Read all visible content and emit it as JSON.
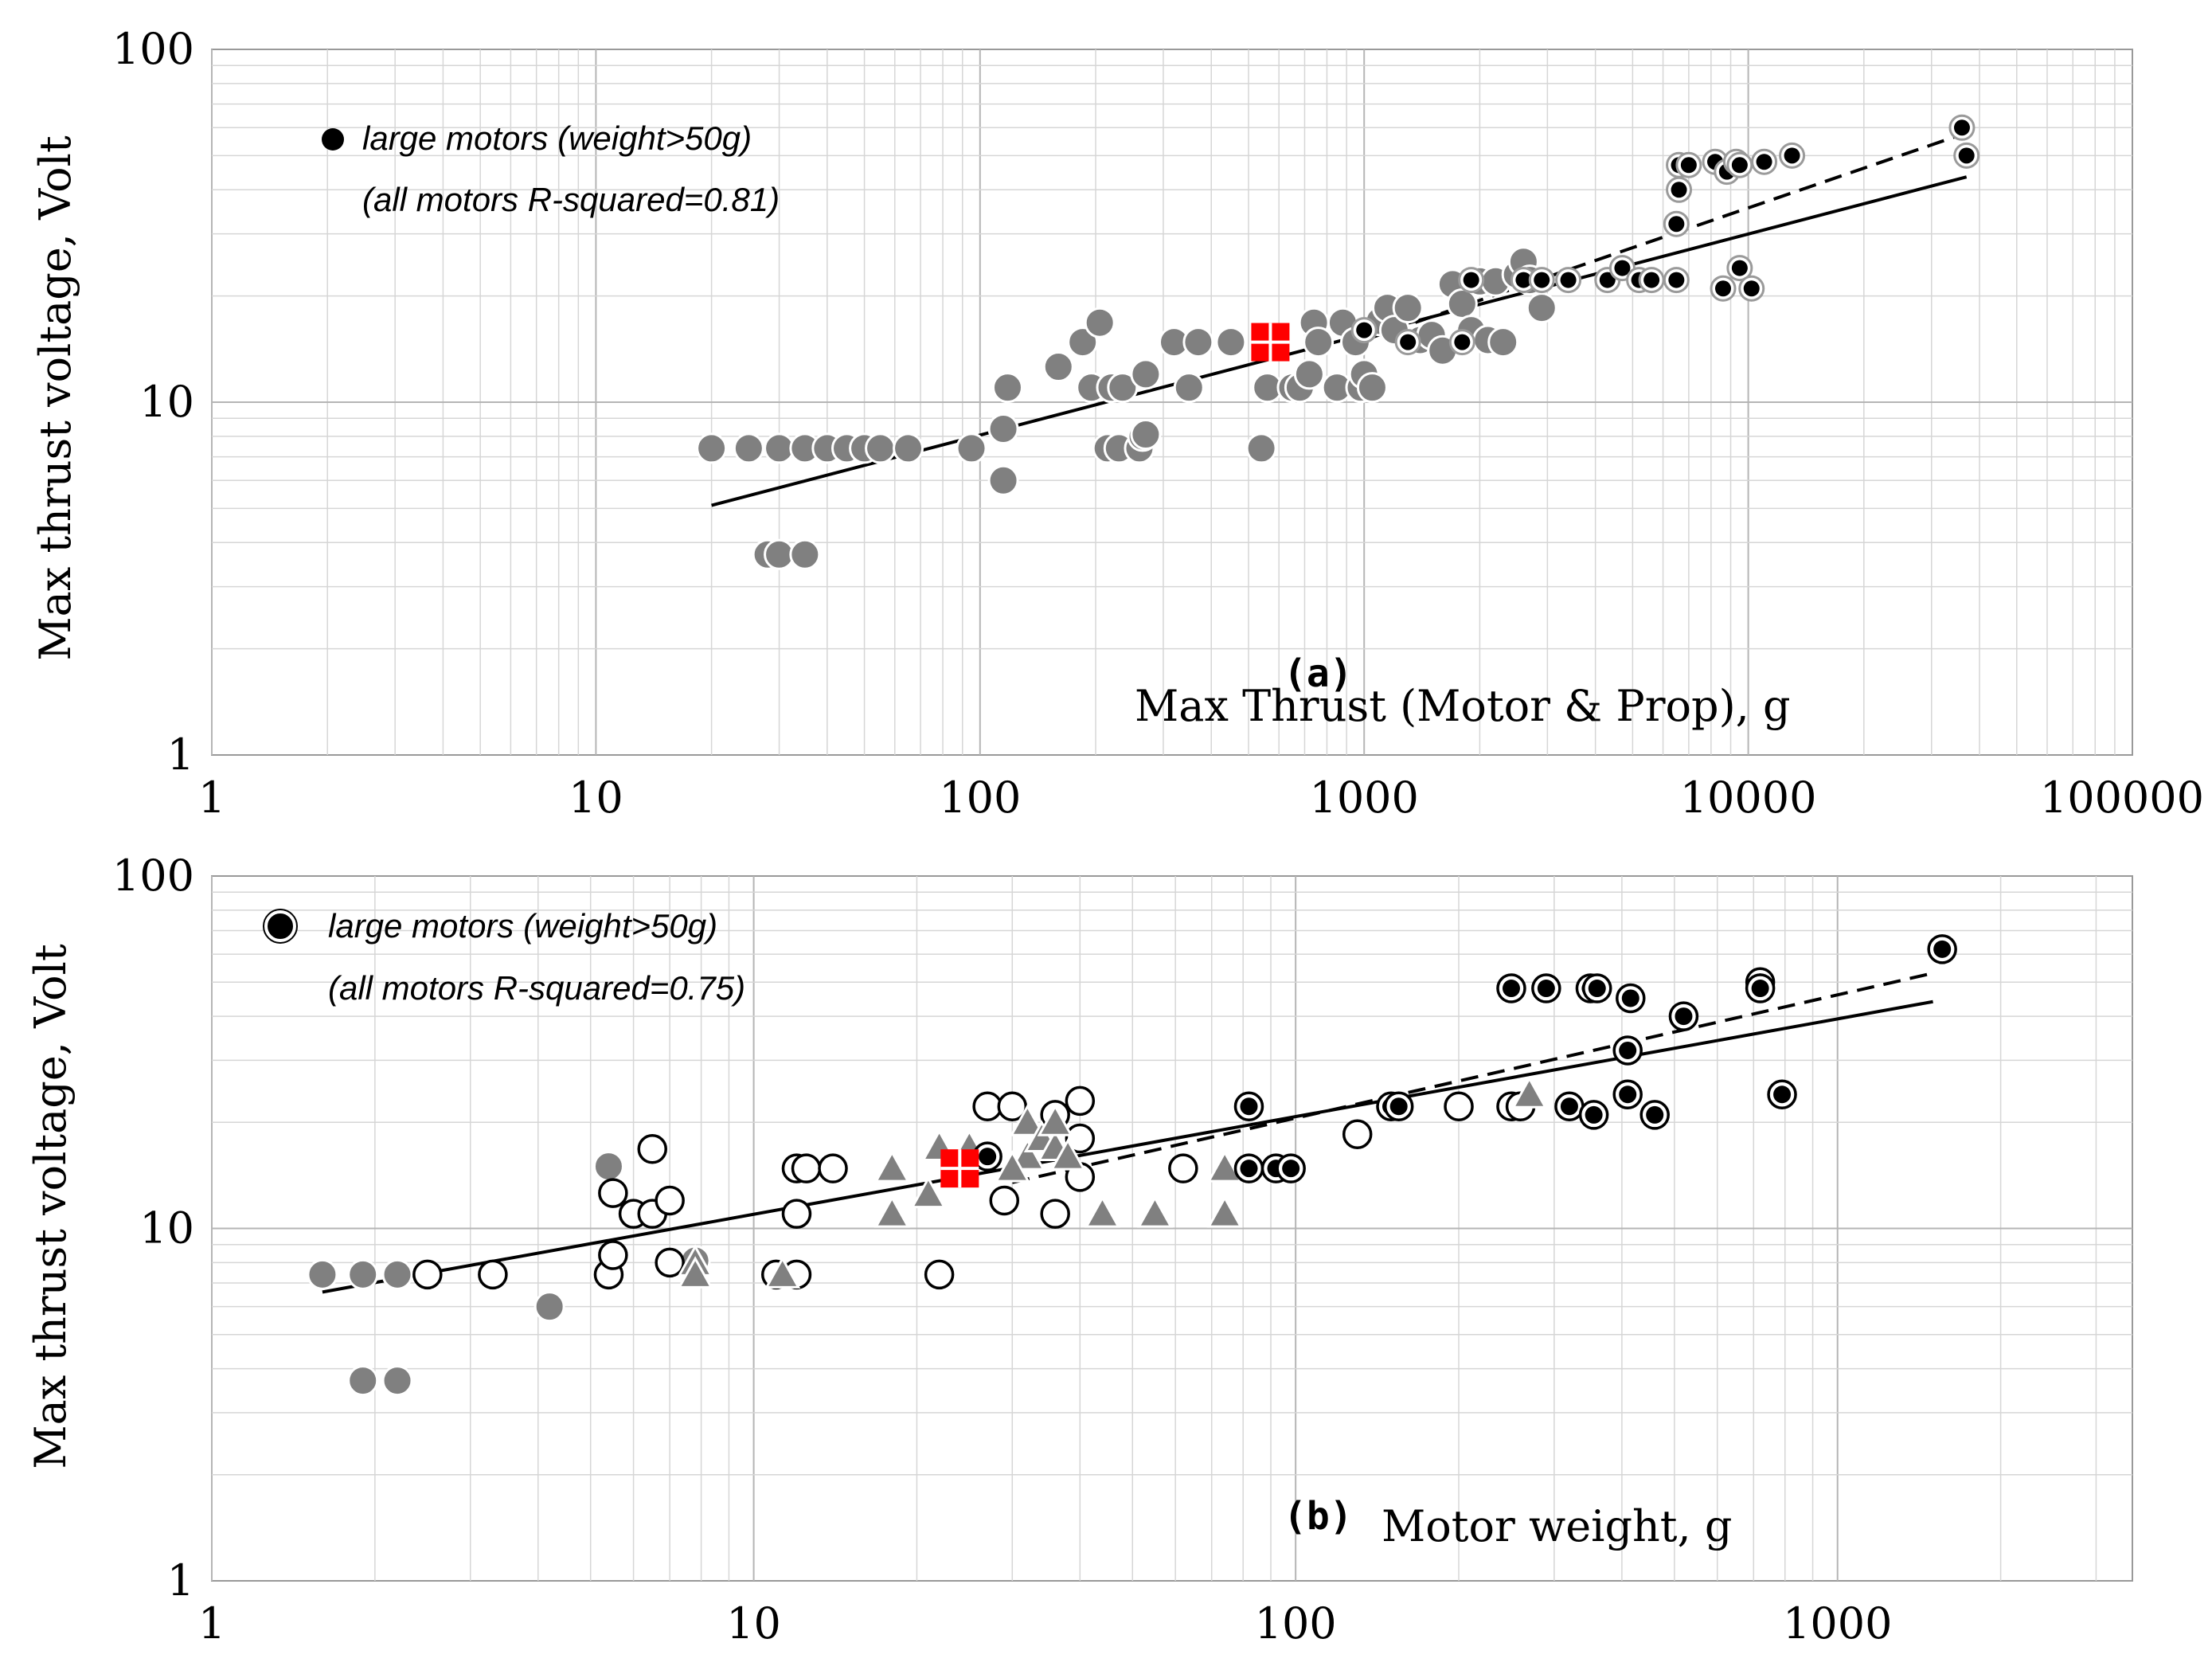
{
  "chart_data": [
    {
      "id": "a",
      "type": "scatter",
      "xscale": "log",
      "yscale": "log",
      "xlim": [
        1,
        100000
      ],
      "ylim": [
        1,
        100
      ],
      "xticks": [
        "1",
        "10",
        "100",
        "1000",
        "10000",
        "100000"
      ],
      "yticks": [
        "1",
        "10",
        "100"
      ],
      "xlabel": "Max Thrust (Motor & Prop), g",
      "ylabel": "Max thrust voltage,  Volt",
      "panel_label": "(a)",
      "legend": {
        "entry": "large motors (weight>50g)",
        "note": "(all motors R-squared=0.81)",
        "position": "top-left"
      },
      "series": [
        {
          "name": "all motors",
          "marker": "gray-circle",
          "points": [
            [
              20,
              7.4
            ],
            [
              25,
              7.4
            ],
            [
              30,
              7.4
            ],
            [
              35,
              7.4
            ],
            [
              40,
              7.4
            ],
            [
              45,
              7.4
            ],
            [
              50,
              7.4
            ],
            [
              55,
              7.4
            ],
            [
              65,
              7.4
            ],
            [
              28,
              3.7
            ],
            [
              30,
              3.7
            ],
            [
              35,
              3.7
            ],
            [
              95,
              7.4
            ],
            [
              115,
              6
            ],
            [
              115,
              8.4
            ],
            [
              118,
              11
            ],
            [
              160,
              12.6
            ],
            [
              185,
              14.8
            ],
            [
              195,
              11
            ],
            [
              205,
              16.8
            ],
            [
              215,
              7.4
            ],
            [
              220,
              11
            ],
            [
              230,
              7.4
            ],
            [
              235,
              11
            ],
            [
              260,
              7.4
            ],
            [
              265,
              8
            ],
            [
              270,
              12
            ],
            [
              270,
              8.1
            ],
            [
              320,
              14.8
            ],
            [
              350,
              11
            ],
            [
              370,
              14.8
            ],
            [
              450,
              14.8
            ],
            [
              540,
              7.4
            ],
            [
              560,
              11
            ],
            [
              650,
              11
            ],
            [
              680,
              11
            ],
            [
              720,
              12
            ],
            [
              740,
              16.8
            ],
            [
              760,
              14.8
            ],
            [
              850,
              11
            ],
            [
              880,
              16.8
            ],
            [
              950,
              14.8
            ],
            [
              980,
              11
            ],
            [
              1000,
              12
            ],
            [
              1050,
              11
            ],
            [
              1100,
              17
            ],
            [
              1150,
              18.5
            ],
            [
              1200,
              16
            ],
            [
              1300,
              18.5
            ],
            [
              1400,
              15
            ],
            [
              1500,
              15.5
            ],
            [
              1600,
              14
            ],
            [
              1700,
              21.6
            ],
            [
              1800,
              19
            ],
            [
              1900,
              16
            ],
            [
              2000,
              22
            ],
            [
              2100,
              15
            ],
            [
              2200,
              22
            ],
            [
              2300,
              14.8
            ],
            [
              2500,
              23
            ],
            [
              2600,
              25
            ],
            [
              2700,
              22.2
            ],
            [
              2900,
              18.5
            ]
          ]
        },
        {
          "name": "large motors (weight>50g)",
          "marker": "black-dot",
          "points": [
            [
              1000,
              16
            ],
            [
              1300,
              14.8
            ],
            [
              1800,
              14.8
            ],
            [
              1900,
              22.2
            ],
            [
              2600,
              22.2
            ],
            [
              2900,
              22.2
            ],
            [
              3400,
              22.2
            ],
            [
              4300,
              22.2
            ],
            [
              4700,
              24
            ],
            [
              5200,
              22.2
            ],
            [
              5600,
              22.2
            ],
            [
              6500,
              22.2
            ],
            [
              6500,
              32
            ],
            [
              6600,
              40
            ],
            [
              6600,
              47
            ],
            [
              7000,
              47
            ],
            [
              8200,
              48
            ],
            [
              8800,
              45
            ],
            [
              9300,
              48
            ],
            [
              9500,
              47
            ],
            [
              11000,
              48
            ],
            [
              13000,
              50
            ],
            [
              8600,
              21
            ],
            [
              9500,
              24
            ],
            [
              10200,
              21
            ],
            [
              36000,
              60
            ],
            [
              37000,
              50
            ]
          ]
        },
        {
          "name": "red marker",
          "marker": "red-square",
          "points": [
            [
              570,
              14.8
            ]
          ]
        }
      ],
      "trendlines": [
        {
          "name": "all motors fit",
          "style": "solid",
          "x": [
            20,
            37000
          ],
          "y": [
            5.1,
            43.5
          ]
        },
        {
          "name": "large motors fit",
          "style": "dashed",
          "x": [
            1000,
            37000
          ],
          "y": [
            15,
            58
          ]
        }
      ]
    },
    {
      "id": "b",
      "type": "scatter",
      "xscale": "log",
      "yscale": "log",
      "xlim": [
        1,
        3500
      ],
      "ylim": [
        1,
        100
      ],
      "xticks": [
        "1",
        "10",
        "100",
        "1000"
      ],
      "yticks": [
        "1",
        "10",
        "100"
      ],
      "xlabel": "Motor weight, g",
      "ylabel": "Max thrust voltage,  Volt",
      "panel_label": "(b)",
      "legend": {
        "entry": "large motors (weight>50g)",
        "note": "(all motors R-squared=0.75)",
        "position": "top-left"
      },
      "series": [
        {
          "name": "gray motors",
          "marker": "gray-circle",
          "points": [
            [
              1.6,
              7.4
            ],
            [
              1.9,
              7.4
            ],
            [
              2.2,
              7.4
            ],
            [
              1.9,
              3.7
            ],
            [
              2.2,
              3.7
            ],
            [
              4.2,
              6
            ],
            [
              5.4,
              15
            ],
            [
              7.8,
              8.1
            ]
          ]
        },
        {
          "name": "open motors",
          "marker": "open-circle",
          "points": [
            [
              2.5,
              7.4
            ],
            [
              3.3,
              7.4
            ],
            [
              5.4,
              7.4
            ],
            [
              5.5,
              8.4
            ],
            [
              5.5,
              12.6
            ],
            [
              6,
              11
            ],
            [
              6.5,
              11
            ],
            [
              6.5,
              16.8
            ],
            [
              7,
              12
            ],
            [
              7,
              8
            ],
            [
              11,
              7.4
            ],
            [
              12,
              7.4
            ],
            [
              12,
              11
            ],
            [
              12,
              14.8
            ],
            [
              12.5,
              14.8
            ],
            [
              14,
              14.8
            ],
            [
              22,
              7.4
            ],
            [
              27,
              22.2
            ],
            [
              29,
              12
            ],
            [
              30,
              22.2
            ],
            [
              36,
              11
            ],
            [
              36,
              21
            ],
            [
              40,
              23
            ],
            [
              40,
              14
            ],
            [
              40,
              18
            ],
            [
              62,
              14.8
            ],
            [
              130,
              18.5
            ],
            [
              200,
              22.2
            ],
            [
              250,
              22.2
            ],
            [
              260,
              22.2
            ]
          ]
        },
        {
          "name": "triangle motors",
          "marker": "gray-triangle",
          "points": [
            [
              7.8,
              8
            ],
            [
              7.8,
              7.4
            ],
            [
              11.3,
              7.4
            ],
            [
              18,
              14.8
            ],
            [
              18,
              11
            ],
            [
              21,
              12.5
            ],
            [
              22,
              17
            ],
            [
              25,
              17
            ],
            [
              32,
              16
            ],
            [
              32,
              20
            ],
            [
              34,
              18
            ],
            [
              36,
              17
            ],
            [
              36,
              20
            ],
            [
              38,
              16
            ],
            [
              30,
              14.8
            ],
            [
              44,
              11
            ],
            [
              55,
              11
            ],
            [
              74,
              11
            ],
            [
              74,
              14.8
            ],
            [
              270,
              24
            ]
          ]
        },
        {
          "name": "large motors (weight>50g)",
          "marker": "black-dot",
          "points": [
            [
              27,
              16
            ],
            [
              82,
              22.2
            ],
            [
              82,
              14.8
            ],
            [
              92,
              14.8
            ],
            [
              98,
              14.8
            ],
            [
              150,
              22.2
            ],
            [
              155,
              22.2
            ],
            [
              250,
              48
            ],
            [
              290,
              48
            ],
            [
              320,
              22.2
            ],
            [
              350,
              48
            ],
            [
              360,
              48
            ],
            [
              355,
              21
            ],
            [
              410,
              32
            ],
            [
              415,
              45
            ],
            [
              410,
              24
            ],
            [
              460,
              21
            ],
            [
              520,
              40
            ],
            [
              720,
              50
            ],
            [
              720,
              48
            ],
            [
              790,
              24
            ],
            [
              1560,
              62
            ]
          ]
        },
        {
          "name": "red marker",
          "marker": "red-square",
          "points": [
            [
              24,
              14.8
            ]
          ]
        }
      ],
      "trendlines": [
        {
          "name": "all motors fit",
          "style": "solid",
          "x": [
            1.6,
            1500
          ],
          "y": [
            6.6,
            44
          ]
        },
        {
          "name": "large motors fit",
          "style": "dashed",
          "x": [
            30,
            1500
          ],
          "y": [
            13.5,
            53
          ]
        }
      ]
    }
  ]
}
